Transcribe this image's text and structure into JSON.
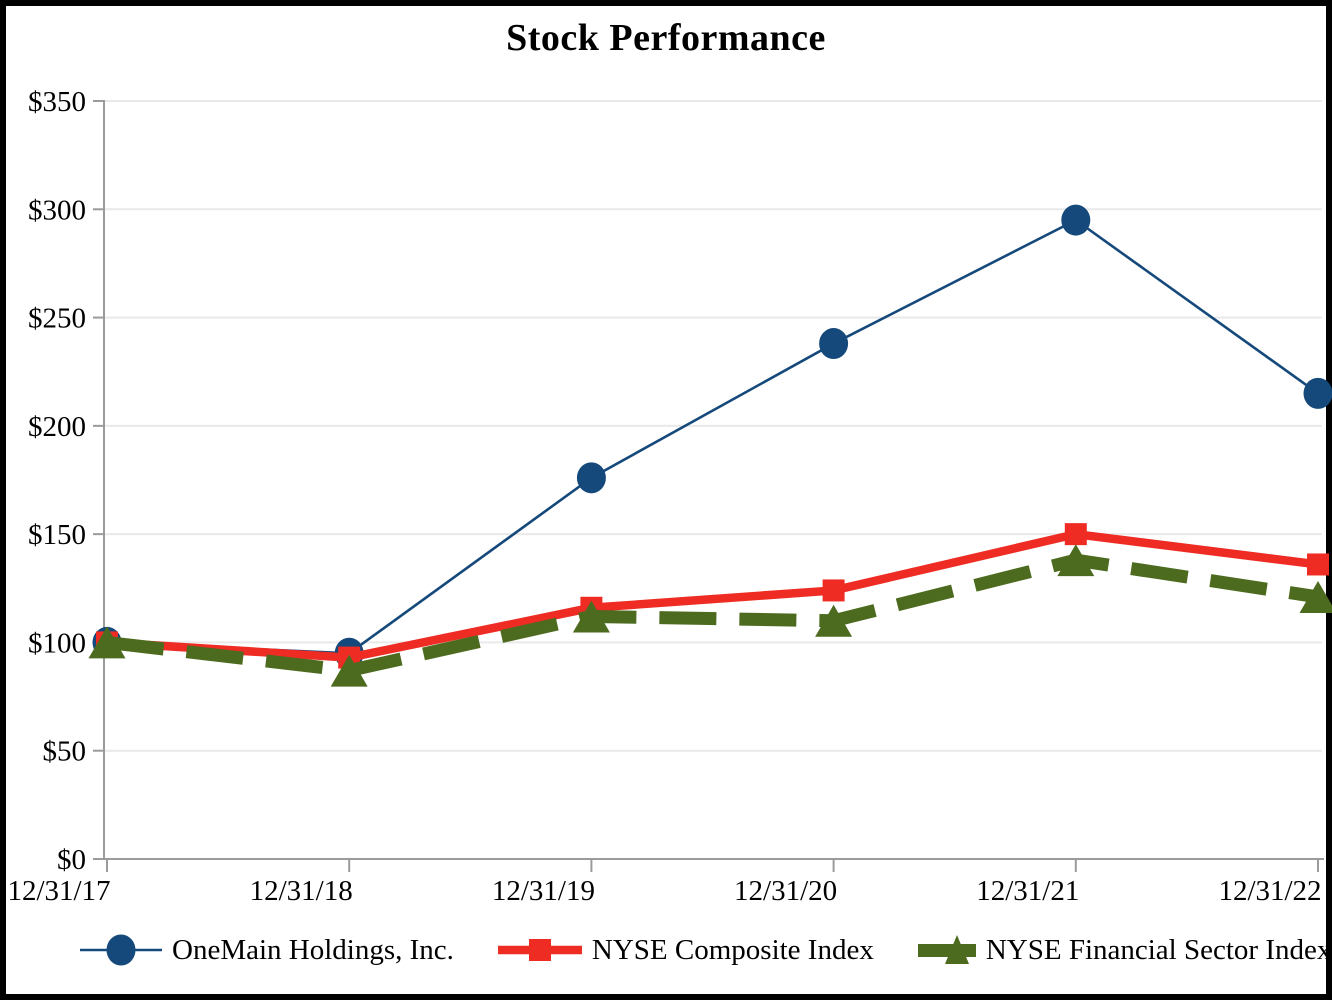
{
  "title": "Stock Performance",
  "chart_data": {
    "type": "line",
    "title": "Stock Performance",
    "categories": [
      "12/31/17",
      "12/31/18",
      "12/31/19",
      "12/31/20",
      "12/31/21",
      "12/31/22"
    ],
    "series": [
      {
        "name": "OneMain Holdings, Inc.",
        "values": [
          100,
          95,
          176,
          238,
          295,
          215
        ],
        "color": "#15497B",
        "marker": "circle",
        "line_style": "solid",
        "line_width": 2.6
      },
      {
        "name": "NYSE Composite Index",
        "values": [
          100,
          93,
          116,
          124,
          150,
          136
        ],
        "color": "#EE2C24",
        "marker": "square",
        "line_style": "solid",
        "line_width": 8.5
      },
      {
        "name": "NYSE Financial Sector Index",
        "values": [
          100,
          87,
          112,
          110,
          138,
          121
        ],
        "color": "#4D6B1F",
        "marker": "triangle",
        "line_style": "dashed",
        "line_width": 13
      }
    ],
    "ylim": [
      0,
      350
    ],
    "y_tick_values": [
      0,
      50,
      100,
      150,
      200,
      250,
      300,
      350
    ],
    "y_tick_labels": [
      "$0",
      "$50",
      "$100",
      "$150",
      "$200",
      "$250",
      "$300",
      "$350"
    ],
    "grid": "horizontal",
    "legend_position": "bottom"
  },
  "colors": {
    "background": "#FFFFFF",
    "frame_border": "#000000",
    "gridline": "#E9E9E9",
    "axis": "#9B9B9B",
    "text": "#000000"
  }
}
